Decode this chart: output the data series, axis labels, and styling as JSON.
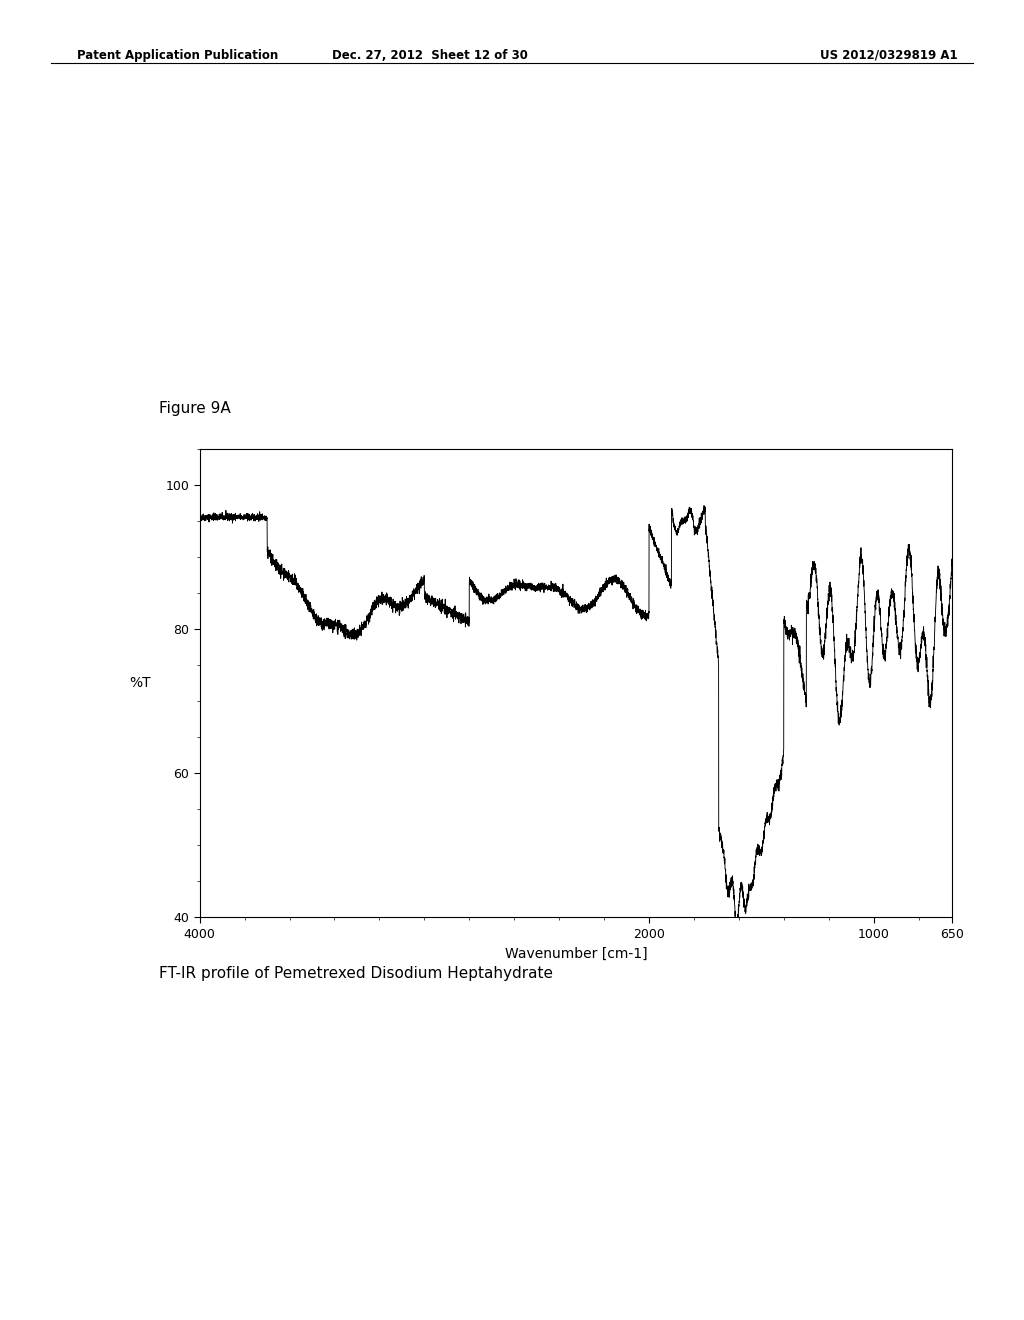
{
  "header_left": "Patent Application Publication",
  "header_center": "Dec. 27, 2012  Sheet 12 of 30",
  "header_right": "US 2012/0329819 A1",
  "figure_label": "Figure 9A",
  "xlabel": "Wavenumber [cm-1]",
  "ylabel": "%T",
  "caption": "FT-IR profile of Pemetrexed Disodium Heptahydrate",
  "xlim": [
    4000,
    650
  ],
  "ylim": [
    40,
    105
  ],
  "yticks": [
    40,
    60,
    80,
    100
  ],
  "xticks": [
    4000,
    2000,
    1000,
    650
  ],
  "background_color": "#ffffff",
  "line_color": "#000000"
}
